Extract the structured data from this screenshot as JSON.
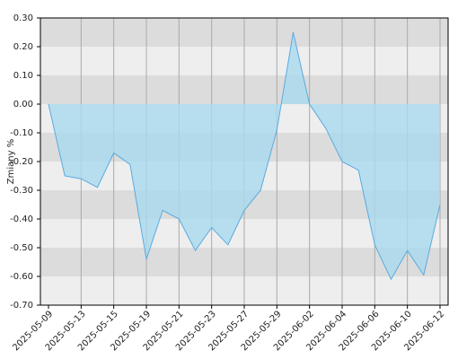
{
  "chart_data": {
    "type": "area",
    "y_label": "Zmiany %",
    "categories": [
      "2025-05-09",
      null,
      "2025-05-13",
      null,
      "2025-05-15",
      null,
      "2025-05-19",
      null,
      "2025-05-21",
      null,
      "2025-05-23",
      null,
      "2025-05-27",
      null,
      "2025-05-29",
      null,
      "2025-06-02",
      null,
      "2025-06-04",
      null,
      "2025-06-06",
      null,
      "2025-06-10",
      null,
      "2025-06-12"
    ],
    "values": [
      0.0,
      -0.25,
      -0.26,
      -0.29,
      -0.17,
      -0.21,
      -0.54,
      -0.37,
      -0.4,
      -0.51,
      -0.43,
      -0.49,
      -0.37,
      -0.3,
      -0.09,
      0.25,
      0.0,
      -0.085,
      -0.2,
      -0.23,
      -0.49,
      -0.61,
      -0.51,
      -0.595,
      -0.35
    ],
    "color": "#5aaae0",
    "fill": "#a9d9ee",
    "ylim": [
      -0.7,
      0.3
    ],
    "yticks": [
      {
        "value": 0.3,
        "label": "0.30"
      },
      {
        "value": 0.2,
        "label": "0.20"
      },
      {
        "value": 0.1,
        "label": "0.10"
      },
      {
        "value": 0.0,
        "label": "0.00"
      },
      {
        "value": -0.1,
        "label": "-0.10"
      },
      {
        "value": -0.2,
        "label": "-0.20"
      },
      {
        "value": -0.3,
        "label": "-0.30"
      },
      {
        "value": -0.4,
        "label": "-0.40"
      },
      {
        "value": -0.5,
        "label": "-0.50"
      },
      {
        "value": -0.6,
        "label": "-0.60"
      },
      {
        "value": -0.7,
        "label": "-0.70"
      }
    ],
    "grid": true
  }
}
